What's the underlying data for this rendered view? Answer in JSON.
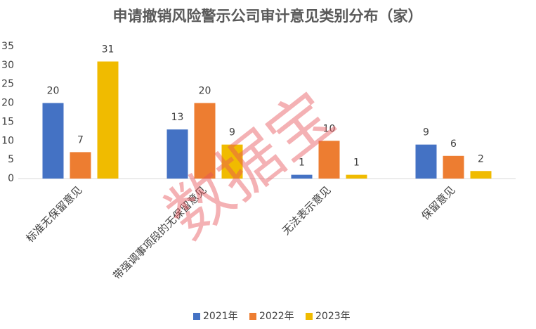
{
  "chart_data": {
    "type": "bar",
    "title": "申请撤销风险警示公司审计意见类别分布（家）",
    "categories": [
      "标准无保留意见",
      "带强调事项段的无保留意见",
      "无法表示意见",
      "保留意见"
    ],
    "series": [
      {
        "name": "2021年",
        "color": "#4472c4",
        "values": [
          20,
          13,
          1,
          9
        ]
      },
      {
        "name": "2022年",
        "color": "#ed7d31",
        "values": [
          7,
          20,
          10,
          6
        ]
      },
      {
        "name": "2023年",
        "color": "#f0bb00",
        "values": [
          31,
          9,
          1,
          2
        ]
      }
    ],
    "ylim": [
      0,
      35
    ],
    "yticks": [
      0,
      5,
      10,
      15,
      20,
      25,
      30,
      35
    ],
    "grid": false,
    "legend": "bottom",
    "watermark": "数据宝"
  }
}
